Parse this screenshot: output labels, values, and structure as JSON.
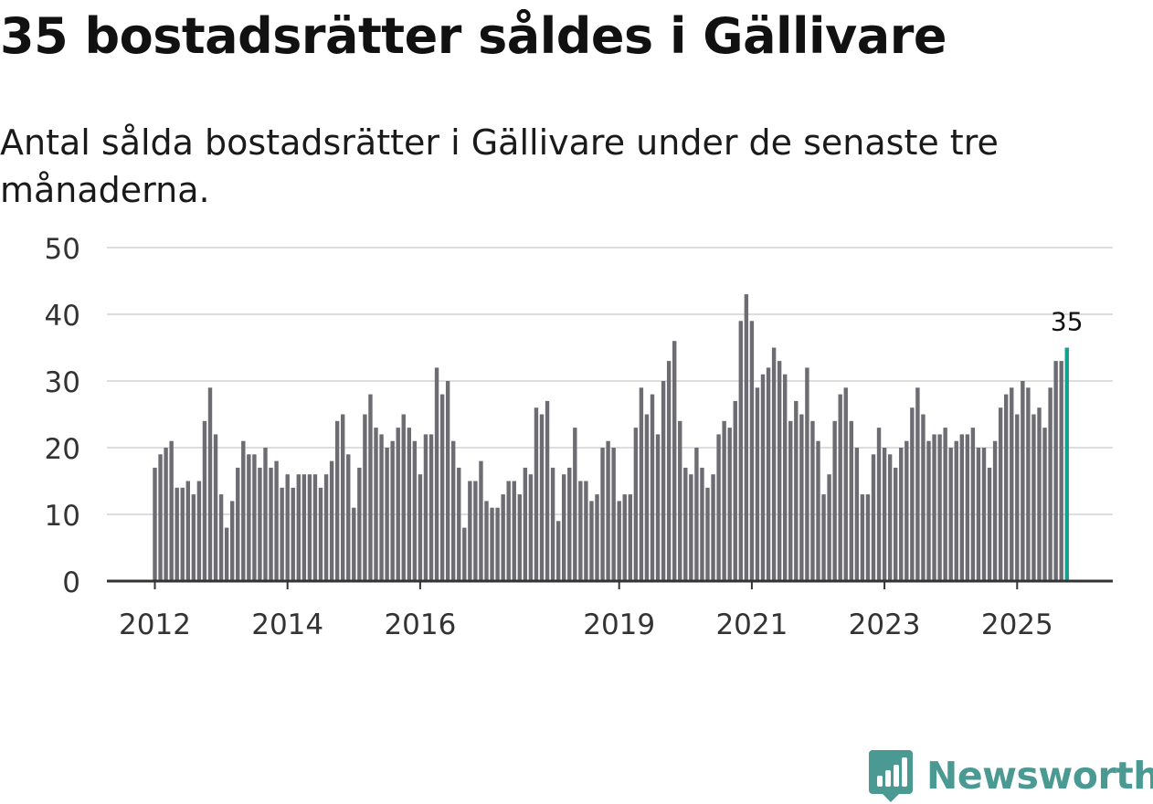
{
  "title": "35 bostadsrätter såldes i Gällivare",
  "subtitle": "Antal sålda bostadsrätter i Gällivare under de senaste tre månaderna.",
  "brand": "Newsworthy",
  "colors": {
    "bar": "#6d6c73",
    "highlight": "#14a091",
    "grid": "#dddddd",
    "axis": "#333333",
    "brand": "#4a9a93"
  },
  "chart_data": {
    "type": "bar",
    "title": "35 bostadsrätter såldes i Gällivare",
    "xlabel": "",
    "ylabel": "",
    "ylim": [
      0,
      50
    ],
    "yticks": [
      0,
      10,
      20,
      30,
      40,
      50
    ],
    "xticks": [
      {
        "label": "2012",
        "index": 0
      },
      {
        "label": "2014",
        "index": 24
      },
      {
        "label": "2016",
        "index": 48
      },
      {
        "label": "2019",
        "index": 84
      },
      {
        "label": "2021",
        "index": 108
      },
      {
        "label": "2023",
        "index": 132
      },
      {
        "label": "2025",
        "index": 156
      }
    ],
    "values": [
      17,
      19,
      20,
      21,
      14,
      14,
      15,
      13,
      15,
      24,
      29,
      22,
      13,
      8,
      12,
      17,
      21,
      19,
      19,
      17,
      20,
      17,
      18,
      14,
      16,
      14,
      16,
      16,
      16,
      16,
      14,
      16,
      18,
      24,
      25,
      19,
      11,
      17,
      25,
      28,
      23,
      22,
      20,
      21,
      23,
      25,
      23,
      21,
      16,
      22,
      22,
      32,
      28,
      30,
      21,
      17,
      8,
      15,
      15,
      18,
      12,
      11,
      11,
      13,
      15,
      15,
      13,
      17,
      16,
      26,
      25,
      27,
      17,
      9,
      16,
      17,
      23,
      15,
      15,
      12,
      13,
      20,
      21,
      20,
      12,
      13,
      13,
      23,
      29,
      25,
      28,
      22,
      30,
      33,
      36,
      24,
      17,
      16,
      20,
      17,
      14,
      16,
      22,
      24,
      23,
      27,
      39,
      43,
      39,
      29,
      31,
      32,
      35,
      33,
      31,
      24,
      27,
      25,
      32,
      24,
      21,
      13,
      16,
      24,
      28,
      29,
      24,
      20,
      13,
      13,
      19,
      23,
      20,
      19,
      17,
      20,
      21,
      26,
      29,
      25,
      21,
      22,
      22,
      23,
      20,
      21,
      22,
      22,
      23,
      20,
      20,
      17,
      21,
      26,
      28,
      29,
      25,
      30,
      29,
      25,
      26,
      23,
      29,
      33,
      33,
      35
    ],
    "highlight_last": true,
    "last_label": "35"
  }
}
